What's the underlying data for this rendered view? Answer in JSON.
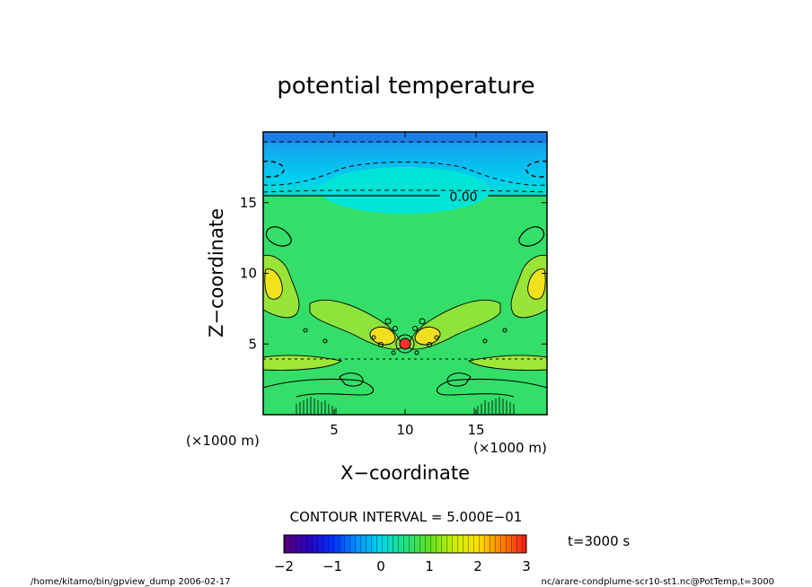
{
  "chart_data": {
    "type": "heatmap",
    "title": "potential temperature",
    "xlabel": "X−coordinate",
    "ylabel": "Z−coordinate",
    "x_unit": "(×1000 m)",
    "y_unit": "(×1000 m)",
    "xlim": [
      0,
      20
    ],
    "ylim": [
      0,
      20
    ],
    "x_ticks": [
      5,
      10,
      15
    ],
    "y_ticks": [
      5,
      10,
      15
    ],
    "x_tick_labels": [
      "5",
      "10",
      "15"
    ],
    "y_tick_labels": [
      "5",
      "10",
      "15"
    ],
    "contour_interval_text": "CONTOUR INTERVAL = 5.000E−01",
    "contour_label": "0.00",
    "time_text": "t=3000 s",
    "colorbar": {
      "range": [
        -2,
        3
      ],
      "ticks": [
        -2,
        -1,
        0,
        1,
        2,
        3
      ],
      "tick_labels": [
        "−2",
        "−1",
        "0",
        "1",
        "2",
        "3"
      ]
    },
    "footer_left": "/home/kitamo/bin/gpview_dump  2006-02-17",
    "footer_right": "nc/arare-condplume-scr10-st1.nc@PotTemp,t=3000"
  },
  "colors": {
    "background_field": "#33e066",
    "upper_layer": "#00ccee",
    "upper_top": "#1199ee",
    "positive_anomaly": "#ffee00",
    "strong_positive": "#ff3333"
  }
}
